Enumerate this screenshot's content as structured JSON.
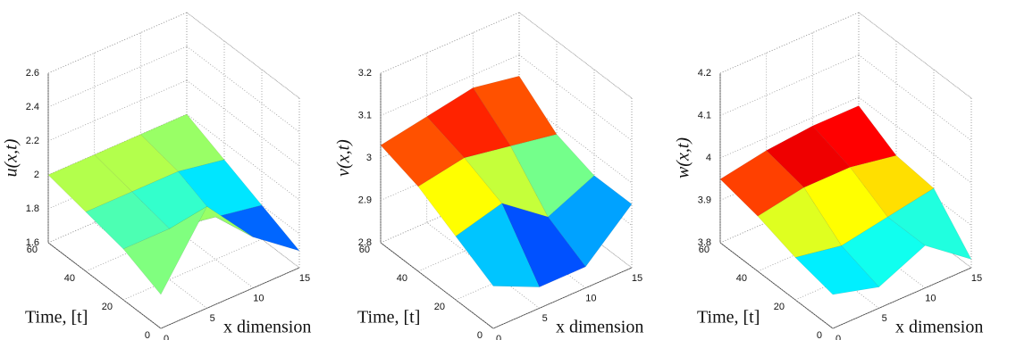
{
  "chart_data": [
    {
      "type": "surface3d",
      "zlabel": "u(x,t)",
      "xlabel": "x dimension",
      "ylabel": "Time, [t]",
      "x": [
        0,
        5,
        10,
        15
      ],
      "y": [
        0,
        20,
        40,
        60
      ],
      "z": [
        [
          1.8,
          2.2,
          1.9,
          1.7
        ],
        [
          1.9,
          1.9,
          1.85,
          1.8
        ],
        [
          1.95,
          1.95,
          1.95,
          1.9
        ],
        [
          2.0,
          2.0,
          2.0,
          2.0
        ]
      ],
      "xlim": [
        0,
        15
      ],
      "ylim": [
        0,
        60
      ],
      "zlim": [
        1.6,
        2.6
      ],
      "xticks": [
        0,
        5,
        10,
        15
      ],
      "yticks": [
        0,
        20,
        40,
        60
      ],
      "zticks": [
        1.6,
        1.8,
        2,
        2.2,
        2.4,
        2.6
      ],
      "grid": true
    },
    {
      "type": "surface3d",
      "zlabel": "v(x,t)",
      "xlabel": "x dimension",
      "ylabel": "Time, [t]",
      "x": [
        0,
        5,
        10,
        15
      ],
      "y": [
        0,
        20,
        40,
        60
      ],
      "z": [
        [
          2.9,
          2.85,
          2.85,
          2.95
        ],
        [
          2.95,
          2.98,
          2.9,
          2.95
        ],
        [
          3.0,
          3.02,
          3.0,
          2.98
        ],
        [
          3.03,
          3.05,
          3.07,
          3.05
        ]
      ],
      "xlim": [
        0,
        15
      ],
      "ylim": [
        0,
        60
      ],
      "zlim": [
        2.8,
        3.2
      ],
      "xticks": [
        0,
        5,
        10,
        15
      ],
      "yticks": [
        0,
        20,
        40,
        60
      ],
      "zticks": [
        2.8,
        2.9,
        3,
        3.1,
        3.2
      ],
      "grid": true
    },
    {
      "type": "surface3d",
      "zlabel": "w(x,t)",
      "xlabel": "x dimension",
      "ylabel": "Time, [t]",
      "x": [
        0,
        5,
        10,
        15
      ],
      "y": [
        0,
        20,
        40,
        60
      ],
      "z": [
        [
          3.88,
          3.85,
          3.9,
          3.82
        ],
        [
          3.9,
          3.88,
          3.9,
          3.92
        ],
        [
          3.93,
          3.95,
          3.95,
          3.93
        ],
        [
          3.95,
          3.97,
          3.98,
          3.98
        ]
      ],
      "xlim": [
        0,
        15
      ],
      "ylim": [
        0,
        60
      ],
      "zlim": [
        3.8,
        4.2
      ],
      "xticks": [
        0,
        5,
        10,
        15
      ],
      "yticks": [
        0,
        20,
        40,
        60
      ],
      "zticks": [
        3.8,
        3.9,
        4,
        4.1,
        4.2
      ],
      "grid": true
    }
  ]
}
